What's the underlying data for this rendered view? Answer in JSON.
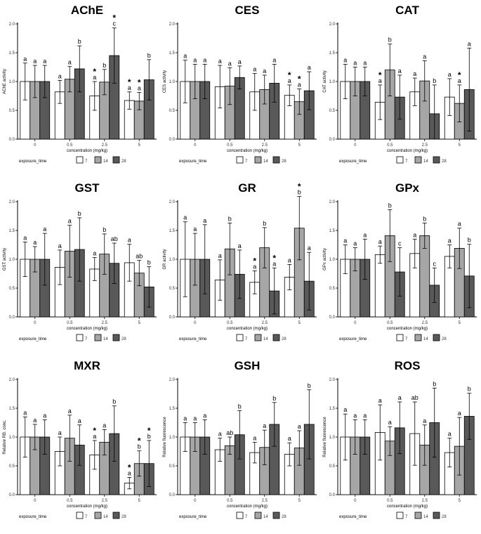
{
  "colors": {
    "t7": "#ffffff",
    "t14": "#a6a6a6",
    "t28": "#595959",
    "stroke": "#000000",
    "axis": "#000000"
  },
  "legend": {
    "title": "exposure_time",
    "labels": [
      "7",
      "14",
      "28"
    ]
  },
  "chart_data": [
    {
      "type": "bar",
      "title": "AChE",
      "ylabel": "AChE activity",
      "xlabel": "concentration (mg/kg)",
      "ylim": [
        0,
        2
      ],
      "yticks": [
        "0.0",
        "0.5",
        "1.0",
        "1.5",
        "2.0"
      ],
      "categories": [
        "0",
        "0.5",
        "2.5",
        "5"
      ],
      "series": [
        {
          "name": "7",
          "values": [
            1.0,
            0.82,
            0.75,
            0.67
          ],
          "err": [
            0.32,
            0.2,
            0.25,
            0.15
          ],
          "letters": [
            "a",
            "a",
            "a",
            "a"
          ],
          "stars": [
            false,
            false,
            true,
            true
          ]
        },
        {
          "name": "14",
          "values": [
            1.0,
            1.04,
            0.99,
            0.66
          ],
          "err": [
            0.28,
            0.22,
            0.22,
            0.15
          ],
          "letters": [
            "a",
            "a",
            "b",
            "a"
          ],
          "stars": [
            false,
            false,
            false,
            true
          ]
        },
        {
          "name": "28",
          "values": [
            1.0,
            1.22,
            1.45,
            1.03
          ],
          "err": [
            0.28,
            0.4,
            0.48,
            0.35
          ],
          "letters": [
            "a",
            "b",
            "c",
            "b"
          ],
          "stars": [
            false,
            false,
            true,
            false
          ]
        }
      ]
    },
    {
      "type": "bar",
      "title": "CES",
      "ylabel": "CES activity",
      "xlabel": "concentration (mg/kg)",
      "ylim": [
        0,
        2
      ],
      "yticks": [
        "0.0",
        "0.5",
        "1.0",
        "1.5",
        "2.0"
      ],
      "categories": [
        "0",
        "0.5",
        "2.5",
        "5"
      ],
      "series": [
        {
          "name": "7",
          "values": [
            1.0,
            0.91,
            0.82,
            0.76
          ],
          "err": [
            0.37,
            0.37,
            0.32,
            0.18
          ],
          "letters": [
            "a",
            "a",
            "a",
            "a"
          ],
          "stars": [
            false,
            false,
            false,
            true
          ]
        },
        {
          "name": "14",
          "values": [
            1.0,
            0.92,
            0.86,
            0.65
          ],
          "err": [
            0.3,
            0.32,
            0.25,
            0.22
          ],
          "letters": [
            "a",
            "a",
            "a",
            "a"
          ],
          "stars": [
            false,
            false,
            false,
            true
          ]
        },
        {
          "name": "28",
          "values": [
            1.0,
            1.07,
            0.97,
            0.84
          ],
          "err": [
            0.3,
            0.2,
            0.33,
            0.33
          ],
          "letters": [
            "a",
            "a",
            "a",
            "a"
          ],
          "stars": [
            false,
            false,
            false,
            false
          ]
        }
      ]
    },
    {
      "type": "bar",
      "title": "CAT",
      "ylabel": "CAT activity",
      "xlabel": "concentration (mg/kg)",
      "ylim": [
        0,
        2
      ],
      "yticks": [
        "0.0",
        "0.5",
        "1.0",
        "1.5",
        "2.0"
      ],
      "categories": [
        "0",
        "0.5",
        "2.5",
        "5"
      ],
      "series": [
        {
          "name": "7",
          "values": [
            1.0,
            0.64,
            0.82,
            0.73
          ],
          "err": [
            0.3,
            0.3,
            0.24,
            0.32
          ],
          "letters": [
            "a",
            "a",
            "a",
            "a"
          ],
          "stars": [
            false,
            true,
            false,
            false
          ]
        },
        {
          "name": "14",
          "values": [
            1.0,
            1.2,
            1.01,
            0.62
          ],
          "err": [
            0.25,
            0.45,
            0.35,
            0.32
          ],
          "letters": [
            "a",
            "b",
            "a",
            "a"
          ],
          "stars": [
            false,
            false,
            false,
            true
          ]
        },
        {
          "name": "28",
          "values": [
            1.0,
            0.73,
            0.44,
            0.86
          ],
          "err": [
            0.25,
            0.38,
            0.5,
            0.72
          ],
          "letters": [
            "a",
            "a",
            "b",
            "a"
          ],
          "stars": [
            false,
            false,
            false,
            false
          ]
        }
      ]
    },
    {
      "type": "bar",
      "title": "GST",
      "ylabel": "GST activity",
      "xlabel": "concentration (mg/kg)",
      "ylim": [
        0,
        2
      ],
      "yticks": [
        "0.0",
        "0.5",
        "1.0",
        "1.5",
        "2.0"
      ],
      "categories": [
        "0",
        "0.5",
        "2.5",
        "5"
      ],
      "series": [
        {
          "name": "7",
          "values": [
            1.0,
            0.86,
            0.83,
            0.94
          ],
          "err": [
            0.3,
            0.3,
            0.2,
            0.32
          ],
          "letters": [
            "a",
            "a",
            "a",
            "a"
          ],
          "stars": [
            false,
            false,
            false,
            false
          ]
        },
        {
          "name": "14",
          "values": [
            1.0,
            1.14,
            1.09,
            0.76
          ],
          "err": [
            0.22,
            0.45,
            0.35,
            0.22
          ],
          "letters": [
            "a",
            "a",
            "b",
            "ab"
          ],
          "stars": [
            false,
            false,
            false,
            false
          ]
        },
        {
          "name": "28",
          "values": [
            1.0,
            1.17,
            0.93,
            0.52
          ],
          "err": [
            0.45,
            0.55,
            0.35,
            0.35
          ],
          "letters": [
            "a",
            "b",
            "ab",
            "b"
          ],
          "stars": [
            false,
            false,
            false,
            false
          ]
        }
      ]
    },
    {
      "type": "bar",
      "title": "GR",
      "ylabel": "GR activity",
      "xlabel": "concentration (mg/kg)",
      "ylim": [
        0,
        2
      ],
      "yticks": [
        "0.0",
        "0.5",
        "1.0",
        "1.5",
        "2.0"
      ],
      "categories": [
        "0",
        "0.5",
        "2.5",
        "5"
      ],
      "series": [
        {
          "name": "7",
          "values": [
            1.0,
            0.64,
            0.6,
            0.69
          ],
          "err": [
            0.65,
            0.35,
            0.2,
            0.22
          ],
          "letters": [
            "a",
            "a",
            "a",
            "a"
          ],
          "stars": [
            false,
            false,
            true,
            false
          ]
        },
        {
          "name": "14",
          "values": [
            1.0,
            1.18,
            1.2,
            1.54
          ],
          "err": [
            0.45,
            0.45,
            0.35,
            0.55
          ],
          "letters": [
            "a",
            "b",
            "b",
            "b"
          ],
          "stars": [
            false,
            false,
            false,
            true
          ]
        },
        {
          "name": "28",
          "values": [
            1.0,
            0.74,
            0.45,
            0.62
          ],
          "err": [
            0.6,
            0.42,
            0.4,
            0.5
          ],
          "letters": [
            "a",
            "a",
            "a",
            "a"
          ],
          "stars": [
            false,
            false,
            true,
            false
          ]
        }
      ]
    },
    {
      "type": "bar",
      "title": "GPx",
      "ylabel": "GPx activity",
      "xlabel": "concentration (mg/kg)",
      "ylim": [
        0,
        2
      ],
      "yticks": [
        "0.0",
        "0.5",
        "1.0",
        "1.5",
        "2.0"
      ],
      "categories": [
        "0",
        "0.5",
        "2.5",
        "5"
      ],
      "series": [
        {
          "name": "7",
          "values": [
            1.0,
            1.08,
            1.1,
            1.05
          ],
          "err": [
            0.25,
            0.15,
            0.25,
            0.2
          ],
          "letters": [
            "a",
            "a",
            "a",
            "a"
          ],
          "stars": [
            false,
            false,
            false,
            false
          ]
        },
        {
          "name": "14",
          "values": [
            1.0,
            1.41,
            1.41,
            1.19
          ],
          "err": [
            0.2,
            0.45,
            0.22,
            0.35
          ],
          "letters": [
            "a",
            "b",
            "b",
            "a"
          ],
          "stars": [
            false,
            false,
            false,
            false
          ]
        },
        {
          "name": "28",
          "values": [
            1.0,
            0.78,
            0.55,
            0.71
          ],
          "err": [
            0.35,
            0.42,
            0.3,
            0.55
          ],
          "letters": [
            "a",
            "c",
            "c",
            "b"
          ],
          "stars": [
            false,
            false,
            false,
            false
          ]
        }
      ]
    },
    {
      "type": "bar",
      "title": "MXR",
      "ylabel": "Relative RB. conc.",
      "xlabel": "concentration (mg/kg)",
      "ylim": [
        0,
        2
      ],
      "yticks": [
        "0.0",
        "0.5",
        "1.0",
        "1.5",
        "2.0"
      ],
      "categories": [
        "0",
        "0.5",
        "2.5",
        "5"
      ],
      "series": [
        {
          "name": "7",
          "values": [
            1.0,
            0.75,
            0.69,
            0.2
          ],
          "err": [
            0.35,
            0.25,
            0.25,
            0.1
          ],
          "letters": [
            "a",
            "a",
            "a",
            "a"
          ],
          "stars": [
            false,
            false,
            true,
            true
          ]
        },
        {
          "name": "14",
          "values": [
            1.0,
            0.98,
            0.91,
            0.54
          ],
          "err": [
            0.22,
            0.4,
            0.22,
            0.22
          ],
          "letters": [
            "a",
            "a",
            "a",
            "b"
          ],
          "stars": [
            false,
            false,
            false,
            true
          ]
        },
        {
          "name": "28",
          "values": [
            1.0,
            0.86,
            1.06,
            0.54
          ],
          "err": [
            0.3,
            0.35,
            0.48,
            0.4
          ],
          "letters": [
            "a",
            "a",
            "b",
            "b"
          ],
          "stars": [
            false,
            false,
            false,
            true
          ]
        }
      ]
    },
    {
      "type": "bar",
      "title": "GSH",
      "ylabel": "Relative fluorescence",
      "xlabel": "concentration (mg/kg)",
      "ylim": [
        0,
        2
      ],
      "yticks": [
        "0.0",
        "0.5",
        "1.0",
        "1.5",
        "2.0"
      ],
      "categories": [
        "0",
        "0.5",
        "2.5",
        "5"
      ],
      "series": [
        {
          "name": "7",
          "values": [
            1.0,
            0.78,
            0.73,
            0.7
          ],
          "err": [
            0.25,
            0.2,
            0.18,
            0.2
          ],
          "letters": [
            "a",
            "a",
            "a",
            "a"
          ],
          "stars": [
            false,
            false,
            false,
            false
          ]
        },
        {
          "name": "14",
          "values": [
            1.0,
            0.85,
            0.82,
            0.81
          ],
          "err": [
            0.25,
            0.15,
            0.3,
            0.3
          ],
          "letters": [
            "a",
            "ab",
            "a",
            "a"
          ],
          "stars": [
            false,
            false,
            false,
            false
          ]
        },
        {
          "name": "28",
          "values": [
            1.0,
            1.04,
            1.22,
            1.22
          ],
          "err": [
            0.3,
            0.42,
            0.38,
            0.6
          ],
          "letters": [
            "a",
            "b",
            "b",
            "b"
          ],
          "stars": [
            false,
            false,
            false,
            false
          ]
        }
      ]
    },
    {
      "type": "bar",
      "title": "ROS",
      "ylabel": "Relative fluorescence",
      "xlabel": "concentration (mg/kg)",
      "ylim": [
        0,
        2
      ],
      "yticks": [
        "0.0",
        "0.5",
        "1.0",
        "1.5",
        "2.0"
      ],
      "categories": [
        "0",
        "0.5",
        "2.5",
        "5"
      ],
      "series": [
        {
          "name": "7",
          "values": [
            1.0,
            1.08,
            1.06,
            0.73
          ],
          "err": [
            0.4,
            0.48,
            0.55,
            0.25
          ],
          "letters": [
            "a",
            "a",
            "ab",
            "a"
          ],
          "stars": [
            false,
            false,
            false,
            false
          ]
        },
        {
          "name": "14",
          "values": [
            1.0,
            0.93,
            0.86,
            0.84
          ],
          "err": [
            0.3,
            0.25,
            0.35,
            0.5
          ],
          "letters": [
            "a",
            "a",
            "a",
            "a"
          ],
          "stars": [
            false,
            false,
            false,
            false
          ]
        },
        {
          "name": "28",
          "values": [
            1.0,
            1.16,
            1.25,
            1.36
          ],
          "err": [
            0.3,
            0.45,
            0.6,
            0.4
          ],
          "letters": [
            "a",
            "a",
            "b",
            "b"
          ],
          "stars": [
            false,
            false,
            false,
            false
          ]
        }
      ]
    }
  ]
}
